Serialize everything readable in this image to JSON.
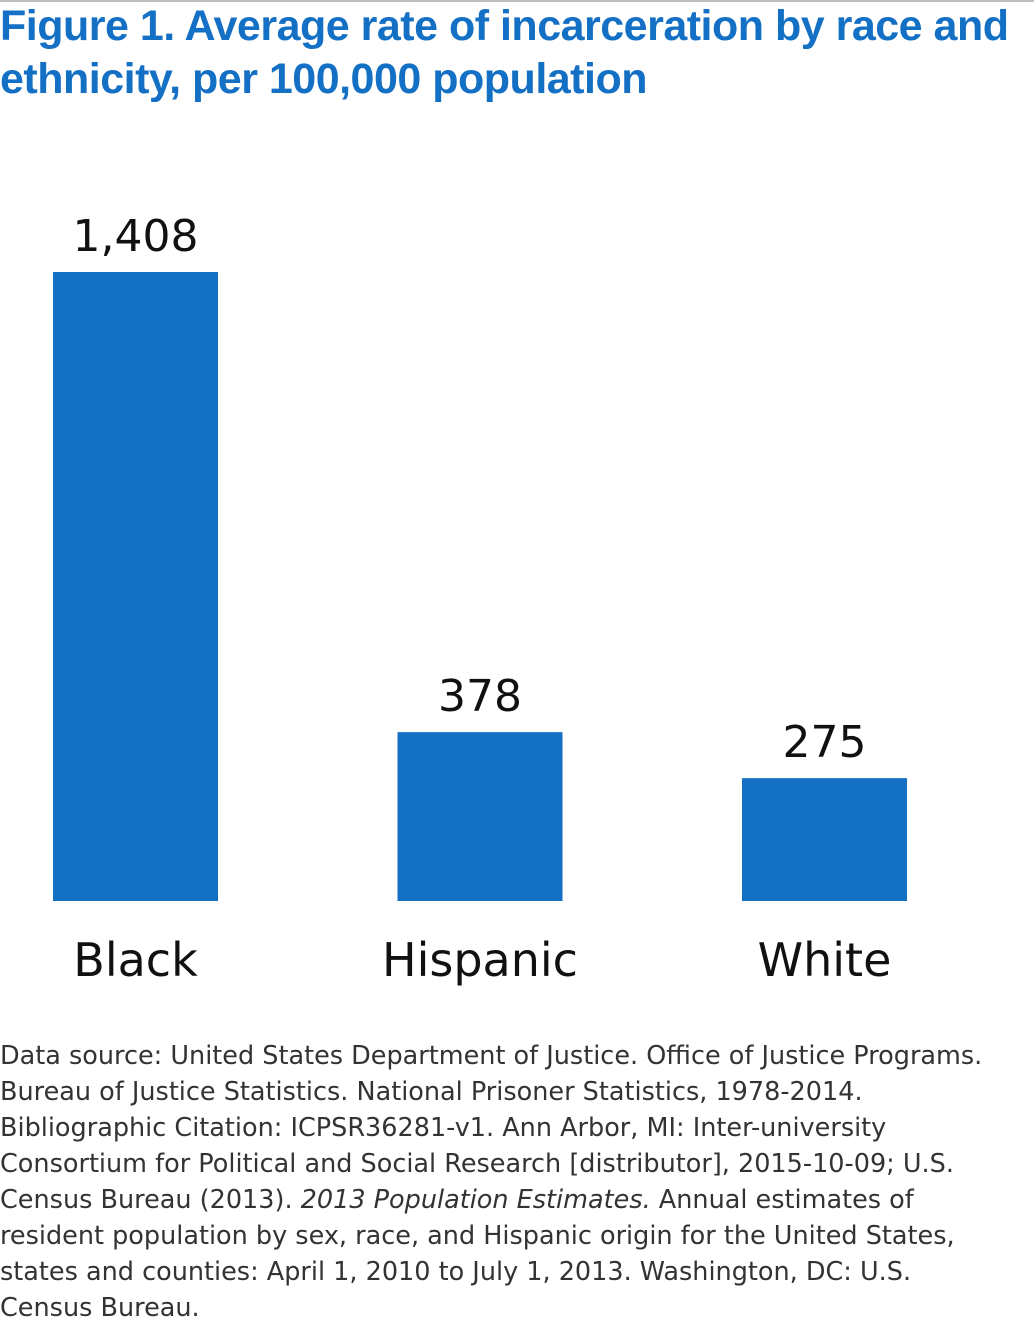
{
  "chart_data": {
    "type": "bar",
    "title": "Figure 1. Average rate of incarceration by race and ethnicity, per 100,000 population",
    "categories": [
      "Black",
      "Hispanic",
      "White"
    ],
    "values": [
      1408,
      378,
      275
    ],
    "value_labels": [
      "1,408",
      "378",
      "275"
    ],
    "ylim": [
      0,
      1408
    ],
    "grid": false,
    "bar_color": "#1470c4"
  },
  "source": {
    "text_before": "Data source: United States Department of Justice. Office of Justice Programs. Bureau of Justice Statistics. National Prisoner Statistics, 1978-2014. Bibliographic Citation: ICPSR36281-v1. Ann Arbor, MI: Inter-university Consortium for Political and Social Research [distributor], 2015-10-09; U.S. Census Bureau (2013).",
    "italic": "2013 Population Estimates.",
    "text_after": "Annual estimates of resident population by sex, race, and Hispanic origin for the United States, states and counties: April 1, 2010 to July 1, 2013. Washington, DC: U.S. Census Bureau."
  }
}
